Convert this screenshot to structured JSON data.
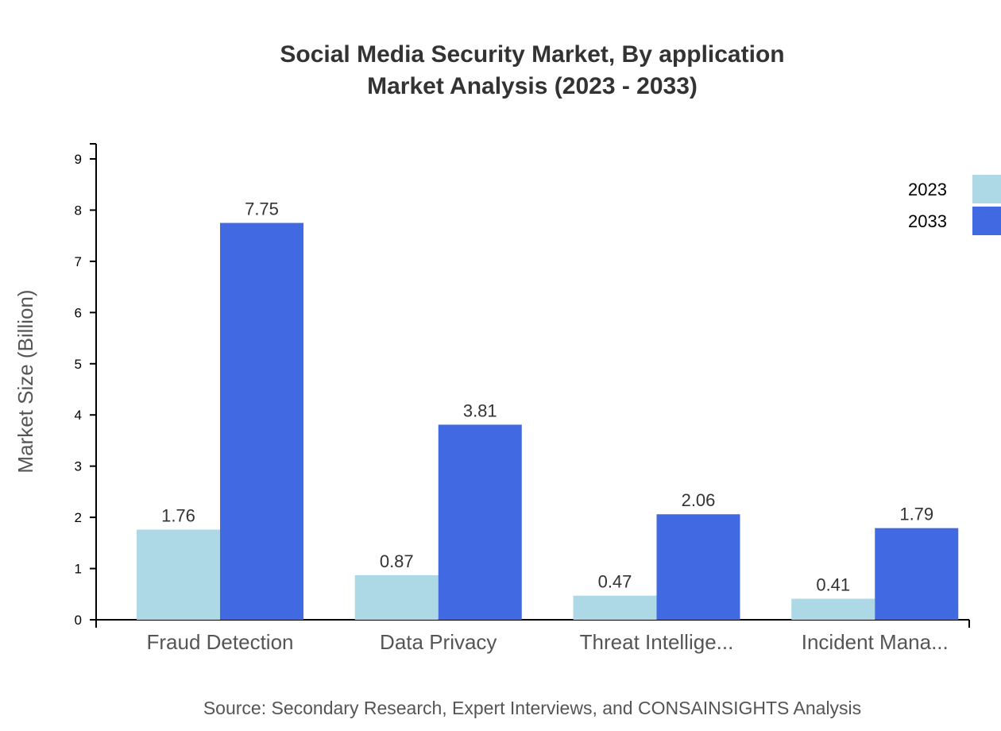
{
  "chart_data": {
    "type": "bar",
    "title": "Social Media Security Market, By application",
    "subtitle": "Market Analysis (2023 - 2033)",
    "xlabel": "",
    "ylabel": "Market Size (Billion)",
    "ylim": [
      0,
      9
    ],
    "yticks": [
      0,
      1,
      2,
      3,
      4,
      5,
      6,
      7,
      8,
      9
    ],
    "categories": [
      "Fraud Detection",
      "Data Privacy",
      "Threat Intellige...",
      "Incident Mana..."
    ],
    "series": [
      {
        "name": "2023",
        "color": "#add8e6",
        "values": [
          1.76,
          0.87,
          0.47,
          0.41
        ]
      },
      {
        "name": "2033",
        "color": "#4169e1",
        "values": [
          7.75,
          3.81,
          2.06,
          1.79
        ]
      }
    ],
    "legend": "top-right",
    "grid": false
  },
  "source": "Source: Secondary Research, Expert Interviews, and CONSAINSIGHTS Analysis"
}
